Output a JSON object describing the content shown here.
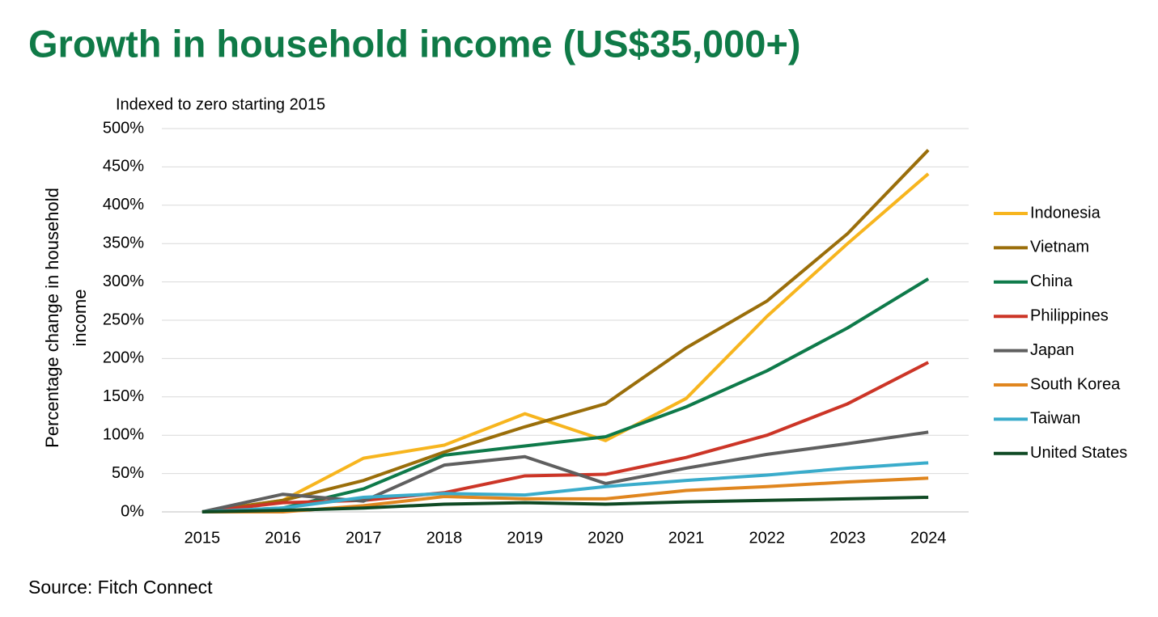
{
  "chart_data": {
    "type": "line",
    "title": "Growth in household income (US$35,000+)",
    "subtitle": "Indexed to zero starting 2015",
    "y_label": "Percentage change in household income",
    "source": "Source: Fitch Connect",
    "categories": [
      "2015",
      "2016",
      "2017",
      "2018",
      "2019",
      "2020",
      "2021",
      "2022",
      "2023",
      "2024"
    ],
    "series": [
      {
        "name": "Indonesia",
        "color": "#f7b51e",
        "values": [
          0,
          15,
          70,
          87,
          128,
          93,
          148,
          255,
          350,
          441
        ]
      },
      {
        "name": "Vietnam",
        "color": "#9a6e0a",
        "values": [
          0,
          15,
          41,
          78,
          111,
          141,
          214,
          275,
          363,
          472
        ]
      },
      {
        "name": "China",
        "color": "#0e7a4a",
        "values": [
          0,
          5,
          30,
          74,
          86,
          98,
          137,
          184,
          240,
          304
        ]
      },
      {
        "name": "Philippines",
        "color": "#cc3527",
        "values": [
          0,
          12,
          15,
          25,
          47,
          49,
          71,
          100,
          141,
          195
        ]
      },
      {
        "name": "Japan",
        "color": "#5f5f5f",
        "values": [
          0,
          23,
          14,
          61,
          72,
          37,
          57,
          75,
          89,
          104
        ]
      },
      {
        "name": "South Korea",
        "color": "#e0861f",
        "values": [
          0,
          0,
          8,
          20,
          17,
          17,
          28,
          33,
          39,
          44
        ]
      },
      {
        "name": "Taiwan",
        "color": "#3aaccb",
        "values": [
          0,
          5,
          19,
          24,
          22,
          33,
          41,
          48,
          57,
          64
        ]
      },
      {
        "name": "United States",
        "color": "#0f4a24",
        "values": [
          0,
          2,
          5,
          10,
          12,
          10,
          13,
          15,
          17,
          19
        ]
      }
    ],
    "ylim": [
      0,
      500
    ],
    "yticks": [
      {
        "value": 0,
        "label": "0%"
      },
      {
        "value": 50,
        "label": "50%"
      },
      {
        "value": 100,
        "label": "100%"
      },
      {
        "value": 150,
        "label": "150%"
      },
      {
        "value": 200,
        "label": "200%"
      },
      {
        "value": 250,
        "label": "250%"
      },
      {
        "value": 300,
        "label": "300%"
      },
      {
        "value": 350,
        "label": "350%"
      },
      {
        "value": 400,
        "label": "400%"
      },
      {
        "value": 450,
        "label": "450%"
      },
      {
        "value": 500,
        "label": "500%"
      }
    ],
    "grid": true,
    "legend": "right"
  }
}
